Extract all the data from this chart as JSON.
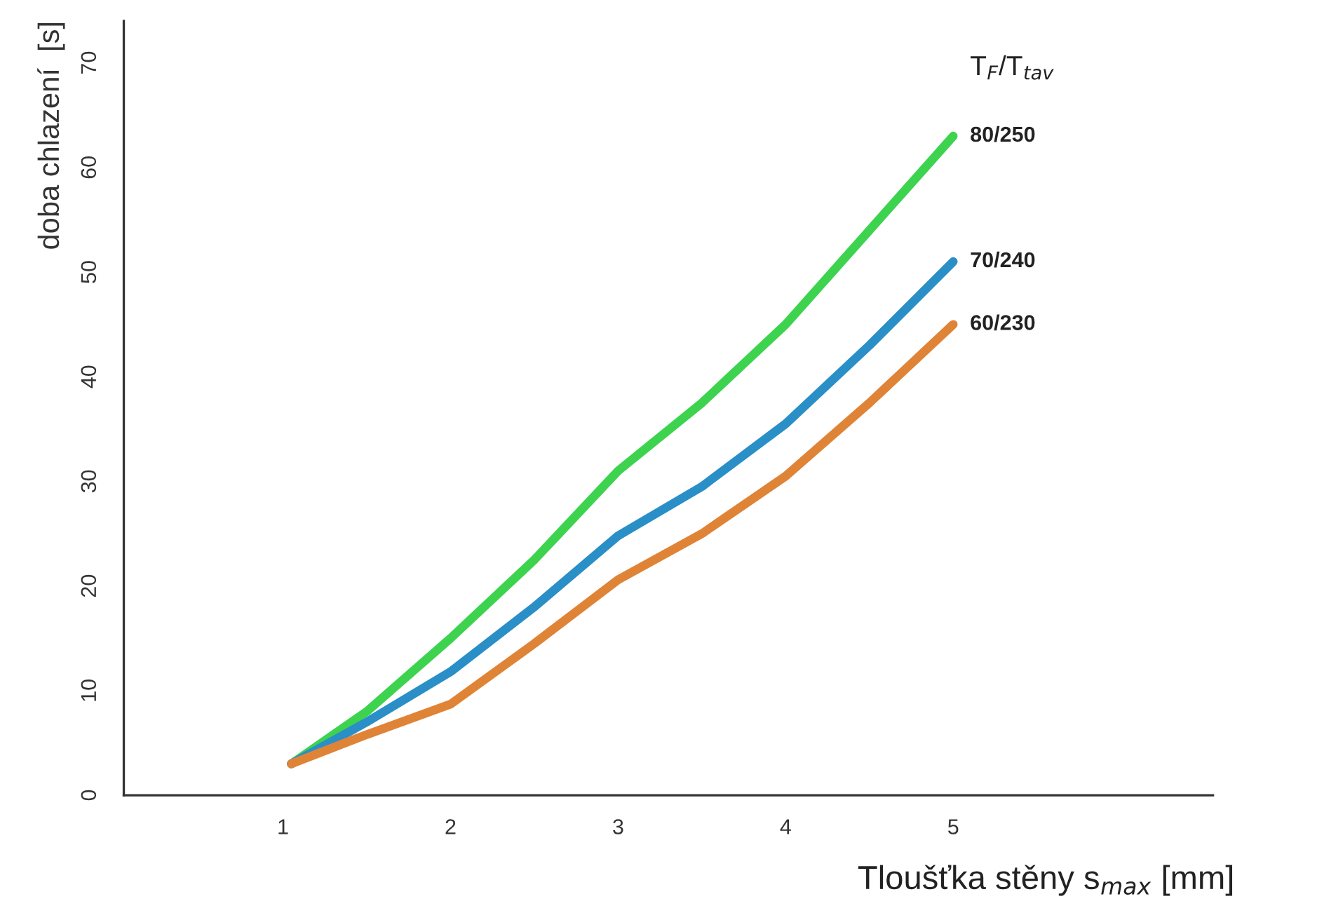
{
  "chart_data": {
    "type": "line",
    "xlabel": "Tloušťka stěny s$_{max}$ [mm]",
    "ylabel": "doba chlazení  [s]",
    "legend_title": "T$_{F}$/T$_{tav}$",
    "x": [
      1.05,
      1.5,
      2,
      2.5,
      3,
      3.5,
      4,
      4.5,
      5
    ],
    "series": [
      {
        "name": "80/250",
        "color": "#3dd34f",
        "values": [
          3,
          8,
          15,
          22.5,
          31,
          37.5,
          45,
          54,
          63
        ]
      },
      {
        "name": "70/240",
        "color": "#2a8fc6",
        "values": [
          3,
          7,
          11.8,
          18,
          24.8,
          29.5,
          35.5,
          43,
          51
        ]
      },
      {
        "name": "60/230",
        "color": "#df8437",
        "values": [
          3,
          5.8,
          8.7,
          14.5,
          20.6,
          25,
          30.5,
          37.5,
          45
        ]
      }
    ],
    "xlim": [
      0.05,
      6.55
    ],
    "ylim": [
      0,
      74
    ],
    "xticks": [
      1,
      2,
      3,
      4,
      5
    ],
    "yticks": [
      0,
      10,
      20,
      30,
      40,
      50,
      60,
      70
    ],
    "grid": false,
    "legend": false,
    "marker": "none",
    "line_style": "solid"
  }
}
